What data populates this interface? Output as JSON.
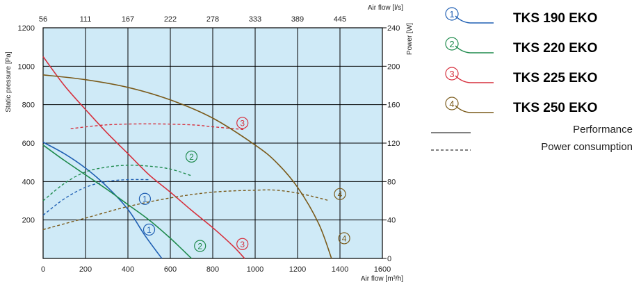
{
  "chart_data": {
    "type": "line",
    "xlabel": "Air flow [m³/h]",
    "x2label": "Air flow [l/s]",
    "ylabel": "Static pressure [Pa]",
    "y2label": "Power [W]",
    "xlim": [
      0,
      1600
    ],
    "ylim": [
      0,
      1200
    ],
    "y2lim": [
      0,
      240
    ],
    "x_ticks": [
      "0",
      "200",
      "400",
      "600",
      "800",
      "1000",
      "1200",
      "1400",
      "1600"
    ],
    "y_ticks": [
      "200",
      "400",
      "600",
      "800",
      "1000",
      "1200"
    ],
    "y2_ticks": [
      "0",
      "40",
      "80",
      "120",
      "160",
      "200",
      "240"
    ],
    "x2_ticks": [
      {
        "m3h": 200,
        "label": "56"
      },
      {
        "m3h": 400,
        "label": "111"
      },
      {
        "m3h": 600,
        "label": "167"
      },
      {
        "m3h": 800,
        "label": "222"
      },
      {
        "m3h": 1000,
        "label": "278"
      },
      {
        "m3h": 1200,
        "label": "333"
      },
      {
        "m3h": 1400,
        "label": "389"
      },
      {
        "m3h": 1600,
        "label": "445"
      }
    ],
    "grid": true,
    "legend_placement": "right",
    "plot_bg": "#cfeaf7",
    "key": {
      "solid": "Performance",
      "dashed": "Power consumption"
    },
    "series": [
      {
        "name": "TKS 190 EKO",
        "marker": "①",
        "color": "#1f5fb3",
        "performance": [
          [
            0,
            605
          ],
          [
            100,
            545
          ],
          [
            200,
            470
          ],
          [
            300,
            375
          ],
          [
            400,
            255
          ],
          [
            480,
            120
          ],
          [
            560,
            0
          ]
        ],
        "power": [
          [
            0,
            45
          ],
          [
            100,
            62
          ],
          [
            200,
            74
          ],
          [
            300,
            80
          ],
          [
            400,
            82
          ],
          [
            500,
            82
          ]
        ],
        "marker_perf": [
          480,
          310
        ],
        "marker_pow": [
          500,
          30
        ]
      },
      {
        "name": "TKS 220 EKO",
        "marker": "②",
        "color": "#1e8a4c",
        "performance": [
          [
            0,
            590
          ],
          [
            100,
            510
          ],
          [
            200,
            435
          ],
          [
            300,
            360
          ],
          [
            400,
            280
          ],
          [
            500,
            200
          ],
          [
            600,
            105
          ],
          [
            700,
            0
          ]
        ],
        "power": [
          [
            0,
            60
          ],
          [
            100,
            78
          ],
          [
            200,
            90
          ],
          [
            300,
            95
          ],
          [
            400,
            97
          ],
          [
            500,
            96
          ],
          [
            600,
            93
          ],
          [
            700,
            86
          ]
        ],
        "marker_perf": [
          740,
          65
        ],
        "marker_pow": [
          700,
          106
        ]
      },
      {
        "name": "TKS 225 EKO",
        "marker": "③",
        "color": "#d62f3c",
        "performance": [
          [
            0,
            1050
          ],
          [
            100,
            900
          ],
          [
            200,
            775
          ],
          [
            300,
            655
          ],
          [
            400,
            545
          ],
          [
            500,
            435
          ],
          [
            600,
            345
          ],
          [
            700,
            250
          ],
          [
            800,
            160
          ],
          [
            900,
            60
          ],
          [
            950,
            0
          ]
        ],
        "power": [
          [
            130,
            135
          ],
          [
            300,
            139
          ],
          [
            500,
            140
          ],
          [
            700,
            139
          ],
          [
            800,
            137
          ],
          [
            950,
            134
          ]
        ],
        "marker_perf": [
          940,
          75
        ],
        "marker_pow": [
          940,
          141
        ]
      },
      {
        "name": "TKS 250 EKO",
        "marker": "④",
        "color": "#7a5a1a",
        "performance": [
          [
            0,
            955
          ],
          [
            200,
            930
          ],
          [
            400,
            890
          ],
          [
            600,
            825
          ],
          [
            800,
            730
          ],
          [
            1000,
            590
          ],
          [
            1100,
            500
          ],
          [
            1200,
            370
          ],
          [
            1300,
            180
          ],
          [
            1360,
            0
          ]
        ],
        "power": [
          [
            0,
            30
          ],
          [
            200,
            42
          ],
          [
            400,
            54
          ],
          [
            600,
            63
          ],
          [
            800,
            69
          ],
          [
            1000,
            71
          ],
          [
            1100,
            71
          ],
          [
            1200,
            68
          ],
          [
            1300,
            63
          ],
          [
            1350,
            60
          ]
        ],
        "marker_perf": [
          1420,
          105
        ],
        "marker_pow": [
          1400,
          67
        ]
      }
    ]
  }
}
